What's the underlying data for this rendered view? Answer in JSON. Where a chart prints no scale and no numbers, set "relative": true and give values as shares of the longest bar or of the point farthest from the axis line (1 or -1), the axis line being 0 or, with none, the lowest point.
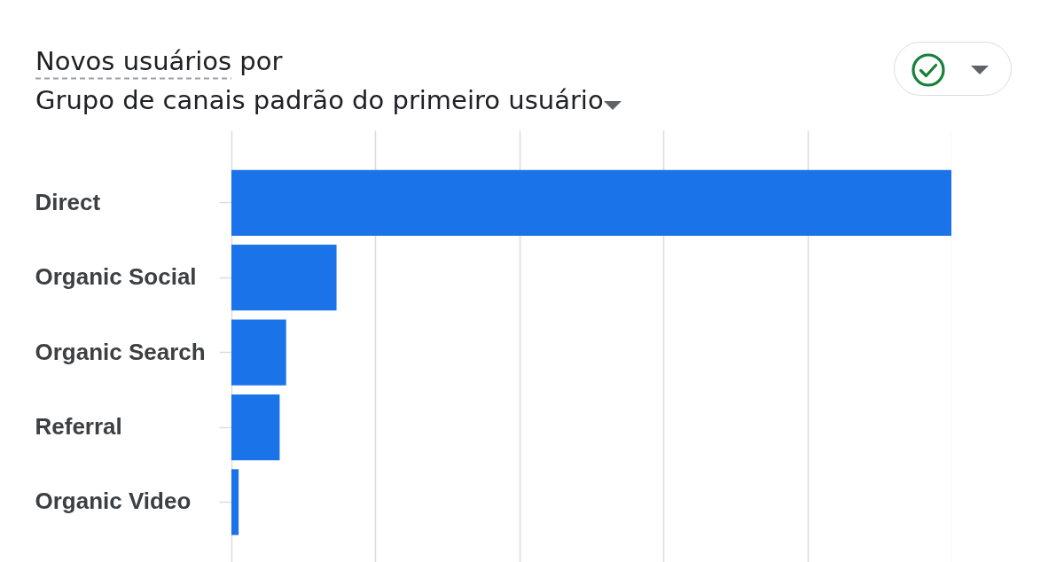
{
  "chart_data": {
    "type": "bar",
    "orientation": "horizontal",
    "relative": true,
    "title": "Novos usuários por",
    "subtitle": "Grupo de canais padrão do primeiro usuário",
    "categories": [
      "Direct",
      "Organic Social",
      "Organic Search",
      "Referral",
      "Organic Video"
    ],
    "values": [
      1,
      0.146,
      0.076,
      0.067,
      0.01
    ],
    "color": "#1a73e8",
    "grid": "x"
  }
}
